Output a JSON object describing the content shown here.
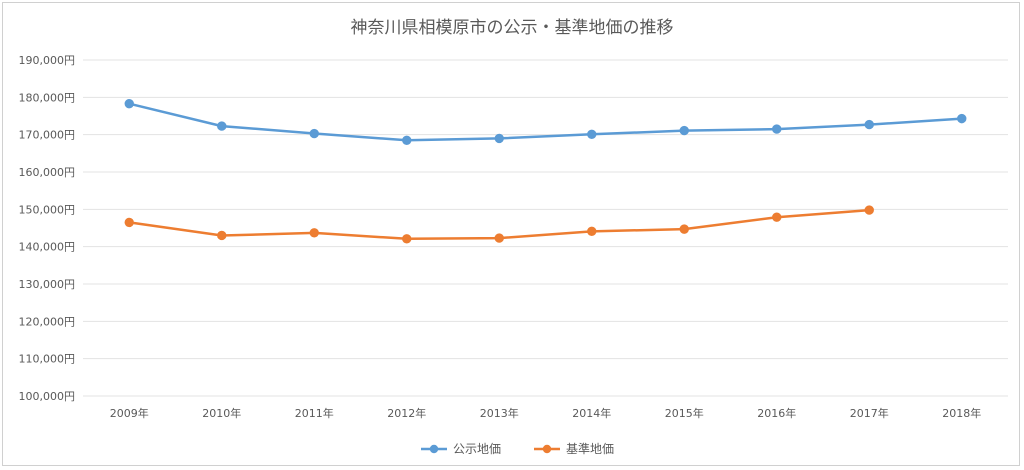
{
  "chart_data": {
    "type": "line",
    "title": "神奈川県相模原市の公示・基準地価の推移",
    "categories": [
      "2009年",
      "2010年",
      "2011年",
      "2012年",
      "2013年",
      "2014年",
      "2015年",
      "2016年",
      "2017年",
      "2018年"
    ],
    "ylim": [
      100000,
      190000
    ],
    "yticks": [
      "100,000円",
      "110,000円",
      "120,000円",
      "130,000円",
      "140,000円",
      "150,000円",
      "160,000円",
      "170,000円",
      "180,000円",
      "190,000円"
    ],
    "grid": true,
    "legend": "bottom",
    "series": [
      {
        "name": "公示地価",
        "color": "#5b9bd5",
        "values": [
          178300,
          172300,
          170300,
          168500,
          169000,
          170100,
          171100,
          171500,
          172700,
          174300
        ]
      },
      {
        "name": "基準地価",
        "color": "#ed7d31",
        "values": [
          146500,
          143000,
          143700,
          142100,
          142300,
          144100,
          144700,
          147900,
          149800,
          null
        ]
      }
    ]
  }
}
